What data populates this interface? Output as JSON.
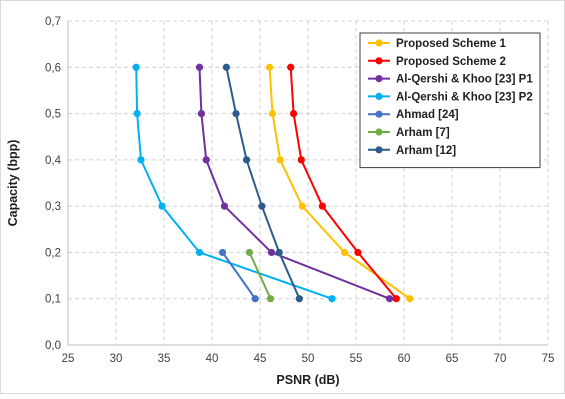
{
  "chart_data": {
    "type": "line",
    "title": "",
    "xlabel": "PSNR (dB)",
    "ylabel": "Capacity (bpp)",
    "xlim": [
      25,
      75
    ],
    "ylim": [
      0,
      0.7
    ],
    "x_ticks": [
      "25",
      "30",
      "35",
      "40",
      "45",
      "50",
      "55",
      "60",
      "65",
      "70",
      "75"
    ],
    "y_ticks": [
      "0,0",
      "0,1",
      "0,2",
      "0,3",
      "0,4",
      "0,5",
      "0,6",
      "0,7"
    ],
    "grid": true,
    "legend_position": "top-right",
    "series": [
      {
        "name": "Proposed Scheme 1",
        "color": "#FFC000",
        "points": [
          [
            60.6,
            0.1
          ],
          [
            53.8,
            0.2
          ],
          [
            49.4,
            0.3
          ],
          [
            47.1,
            0.4
          ],
          [
            46.3,
            0.5
          ],
          [
            46.0,
            0.6
          ]
        ]
      },
      {
        "name": "Proposed Scheme 2",
        "color": "#FF0000",
        "points": [
          [
            59.2,
            0.1
          ],
          [
            55.2,
            0.2
          ],
          [
            51.5,
            0.3
          ],
          [
            49.3,
            0.4
          ],
          [
            48.5,
            0.5
          ],
          [
            48.2,
            0.6
          ]
        ]
      },
      {
        "name": "Al-Qershi & Khoo [23] P1",
        "color": "#7030A0",
        "points": [
          [
            58.5,
            0.1
          ],
          [
            46.2,
            0.2
          ],
          [
            41.3,
            0.3
          ],
          [
            39.4,
            0.4
          ],
          [
            38.9,
            0.5
          ],
          [
            38.7,
            0.6
          ]
        ]
      },
      {
        "name": "Al-Qershi & Khoo [23] P2",
        "color": "#00B0F0",
        "points": [
          [
            52.5,
            0.1
          ],
          [
            38.7,
            0.2
          ],
          [
            34.8,
            0.3
          ],
          [
            32.6,
            0.4
          ],
          [
            32.2,
            0.5
          ],
          [
            32.1,
            0.6
          ]
        ]
      },
      {
        "name": "Ahmad [24]",
        "color": "#4472C4",
        "points": [
          [
            44.5,
            0.1
          ],
          [
            41.1,
            0.2
          ]
        ]
      },
      {
        "name": "Arham [7]",
        "color": "#70AD47",
        "points": [
          [
            46.1,
            0.1
          ],
          [
            43.9,
            0.2
          ]
        ]
      },
      {
        "name": "Arham [12]",
        "color": "#2E5C8A",
        "points": [
          [
            49.1,
            0.1
          ],
          [
            47.0,
            0.2
          ],
          [
            45.2,
            0.3
          ],
          [
            43.6,
            0.4
          ],
          [
            42.5,
            0.5
          ],
          [
            41.5,
            0.6
          ]
        ]
      }
    ]
  }
}
